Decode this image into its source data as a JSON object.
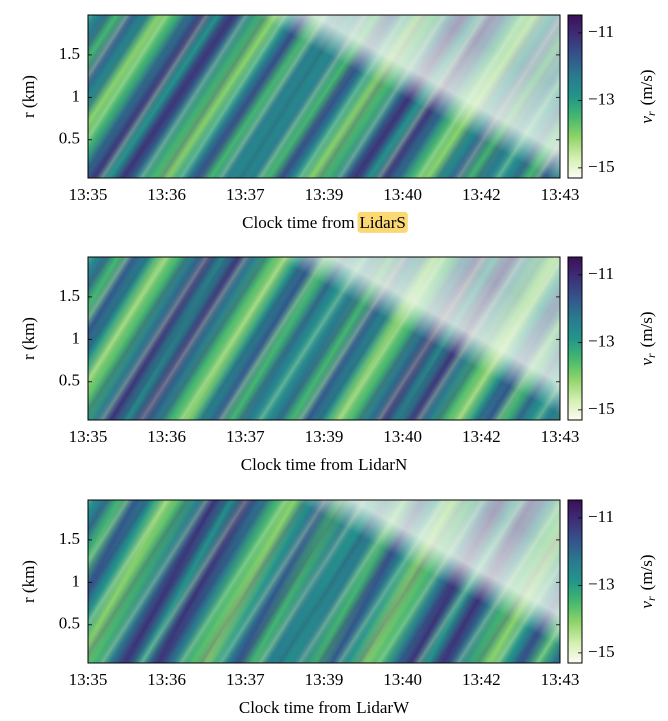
{
  "chart_data": [
    {
      "type": "heatmap",
      "ylabel": "r (km)",
      "xlabel": "Clock time from",
      "source": "LidarS",
      "highlight": true,
      "x_tick_labels": [
        "13:35",
        "13:36",
        "13:37",
        "13:39",
        "13:40",
        "13:42",
        "13:43"
      ],
      "ylim": [
        0.05,
        1.97
      ],
      "yticks": [
        0.5,
        1,
        1.5
      ],
      "clim": [
        -15.3,
        -10.47
      ],
      "cticks": [
        {
          "value": -11,
          "label": "−11"
        },
        {
          "value": -13,
          "label": "−13"
        },
        {
          "value": -15,
          "label": "−15"
        }
      ],
      "colorbar_label": [
        "v",
        "r",
        "(m/s)"
      ],
      "colormap": [
        "#fbfdf3",
        "#d4eeb0",
        "#8fd46a",
        "#45b86e",
        "#22958b",
        "#2a7a8e",
        "#34548c",
        "#3e2f78",
        "#3b0f57"
      ]
    },
    {
      "type": "heatmap",
      "ylabel": "r (km)",
      "xlabel": "Clock time from",
      "source": "LidarN",
      "highlight": false,
      "x_tick_labels": [
        "13:35",
        "13:36",
        "13:37",
        "13:39",
        "13:40",
        "13:42",
        "13:43"
      ],
      "ylim": [
        0.05,
        1.97
      ],
      "yticks": [
        0.5,
        1,
        1.5
      ],
      "clim": [
        -15.3,
        -10.47
      ],
      "cticks": [
        {
          "value": -11,
          "label": "−11"
        },
        {
          "value": -13,
          "label": "−13"
        },
        {
          "value": -15,
          "label": "−15"
        }
      ],
      "colorbar_label": [
        "v",
        "r",
        "(m/s)"
      ],
      "colormap": [
        "#fbfdf3",
        "#d4eeb0",
        "#8fd46a",
        "#45b86e",
        "#22958b",
        "#2a7a8e",
        "#34548c",
        "#3e2f78",
        "#3b0f57"
      ]
    },
    {
      "type": "heatmap",
      "ylabel": "r (km)",
      "xlabel": "Clock time from",
      "source": "LidarW",
      "highlight": false,
      "x_tick_labels": [
        "13:35",
        "13:36",
        "13:37",
        "13:39",
        "13:40",
        "13:42",
        "13:43"
      ],
      "ylim": [
        0.05,
        1.97
      ],
      "yticks": [
        0.5,
        1,
        1.5
      ],
      "clim": [
        -15.3,
        -10.47
      ],
      "cticks": [
        {
          "value": -11,
          "label": "−11"
        },
        {
          "value": -13,
          "label": "−13"
        },
        {
          "value": -15,
          "label": "−15"
        }
      ],
      "colorbar_label": [
        "v",
        "r",
        "(m/s)"
      ],
      "colormap": [
        "#fbfdf3",
        "#d4eeb0",
        "#8fd46a",
        "#45b86e",
        "#22958b",
        "#2a7a8e",
        "#34548c",
        "#3e2f78",
        "#3b0f57"
      ]
    }
  ]
}
